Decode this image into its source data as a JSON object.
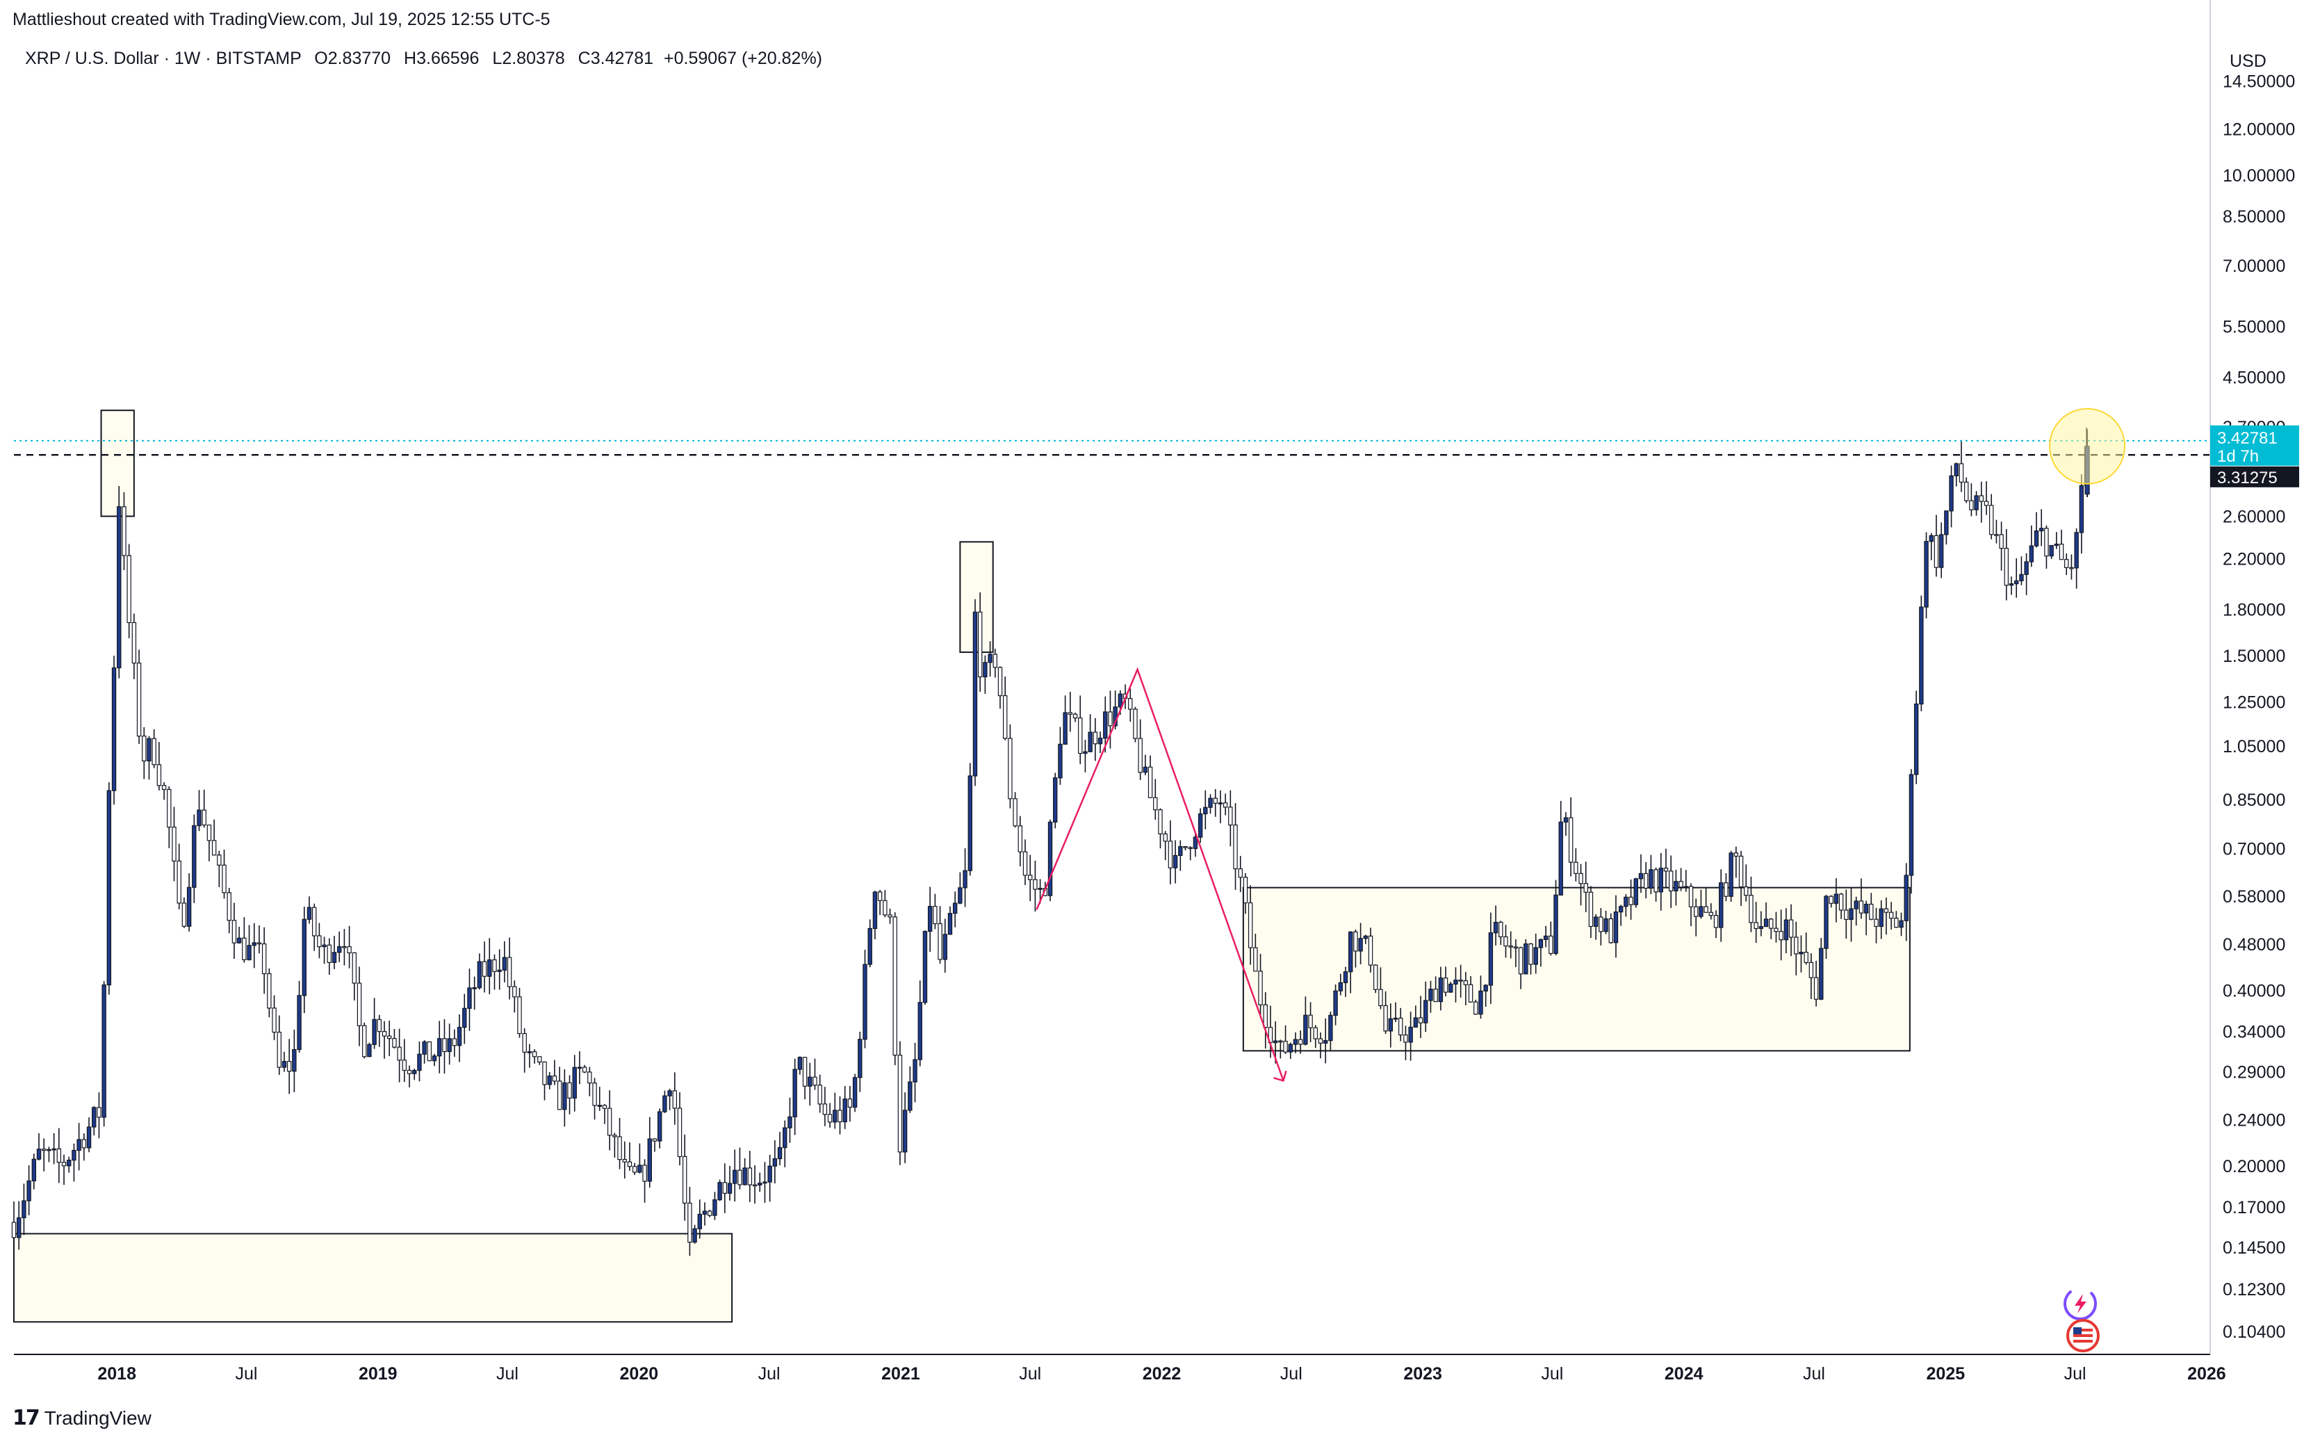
{
  "header": {
    "attribution": "Mattlieshout created with TradingView.com, Jul 19, 2025 12:55 UTC-5",
    "symbol": "XRP / U.S. Dollar · 1W · BITSTAMP",
    "open_label": "O",
    "open": "2.83770",
    "high_label": "H",
    "high": "3.66596",
    "low_label": "L",
    "low": "2.80378",
    "close_label": "C",
    "close": "3.42781",
    "change": "+0.59067 (+20.82%)"
  },
  "footer": {
    "brand": "TradingView"
  },
  "colors": {
    "up_candle": "#131722",
    "down_candle": "#ffffff",
    "body_blue": "#1e3a8a",
    "zone_fill": "#fffdf0",
    "zigzag": "#e91e63",
    "last_price_bg": "#00bcd4",
    "ref_price_bg": "#131722",
    "highlight_circle": "#fff59d",
    "dotted_line": "#00bcd4"
  },
  "icons": [
    "lightning-icon",
    "us-flag-icon"
  ],
  "chart_data": {
    "type": "candlestick",
    "scale": "log",
    "currency": "USD",
    "ylim": [
      0.095,
      17.5
    ],
    "y_ticks": [
      "14.50000",
      "12.00000",
      "10.00000",
      "8.50000",
      "7.00000",
      "5.50000",
      "4.50000",
      "3.70000",
      "2.60000",
      "2.20000",
      "1.80000",
      "1.50000",
      "1.25000",
      "1.05000",
      "0.85000",
      "0.70000",
      "0.58000",
      "0.48000",
      "0.40000",
      "0.34000",
      "0.29000",
      "0.24000",
      "0.20000",
      "0.17000",
      "0.14500",
      "0.12300",
      "0.10400"
    ],
    "x_ticks": [
      {
        "label": "2018",
        "date": "2018-01-01",
        "bold": true
      },
      {
        "label": "Jul",
        "date": "2018-07-01"
      },
      {
        "label": "2019",
        "date": "2019-01-01",
        "bold": true
      },
      {
        "label": "Jul",
        "date": "2019-07-01"
      },
      {
        "label": "2020",
        "date": "2020-01-01",
        "bold": true
      },
      {
        "label": "Jul",
        "date": "2020-07-01"
      },
      {
        "label": "2021",
        "date": "2021-01-01",
        "bold": true
      },
      {
        "label": "Jul",
        "date": "2021-07-01"
      },
      {
        "label": "2022",
        "date": "2022-01-01",
        "bold": true
      },
      {
        "label": "Jul",
        "date": "2022-07-01"
      },
      {
        "label": "2023",
        "date": "2023-01-01",
        "bold": true
      },
      {
        "label": "Jul",
        "date": "2023-07-01"
      },
      {
        "label": "2024",
        "date": "2024-01-01",
        "bold": true
      },
      {
        "label": "Jul",
        "date": "2024-07-01"
      },
      {
        "label": "2025",
        "date": "2025-01-01",
        "bold": true
      },
      {
        "label": "Jul",
        "date": "2025-07-01"
      },
      {
        "label": "2026",
        "date": "2026-01-01",
        "bold": true
      }
    ],
    "x_range": [
      "2017-08-10",
      "2026-01-04"
    ],
    "last_price": {
      "value": 3.42781,
      "label": "3.42781",
      "countdown": "1d 7h"
    },
    "ref_price": {
      "value": 3.31275,
      "label": "3.31275"
    },
    "prior_ath_line": 3.31275,
    "price_path": [
      [
        "2017-08-10",
        0.16
      ],
      [
        "2017-09-15",
        0.21
      ],
      [
        "2017-10-15",
        0.2
      ],
      [
        "2017-11-20",
        0.23
      ],
      [
        "2017-12-10",
        0.25
      ],
      [
        "2017-12-20",
        0.85
      ],
      [
        "2017-12-27",
        1.3
      ],
      [
        "2018-01-03",
        2.9
      ],
      [
        "2018-01-10",
        2.2
      ],
      [
        "2018-01-20",
        1.6
      ],
      [
        "2018-02-05",
        1.0
      ],
      [
        "2018-02-20",
        1.05
      ],
      [
        "2018-03-10",
        0.85
      ],
      [
        "2018-04-01",
        0.5
      ],
      [
        "2018-04-25",
        0.85
      ],
      [
        "2018-05-20",
        0.65
      ],
      [
        "2018-06-20",
        0.48
      ],
      [
        "2018-07-25",
        0.45
      ],
      [
        "2018-08-14",
        0.29
      ],
      [
        "2018-09-05",
        0.3
      ],
      [
        "2018-09-21",
        0.55
      ],
      [
        "2018-10-15",
        0.46
      ],
      [
        "2018-11-15",
        0.5
      ],
      [
        "2018-12-10",
        0.32
      ],
      [
        "2018-12-31",
        0.36
      ],
      [
        "2019-02-10",
        0.3
      ],
      [
        "2019-03-15",
        0.31
      ],
      [
        "2019-04-15",
        0.32
      ],
      [
        "2019-05-20",
        0.42
      ],
      [
        "2019-06-25",
        0.46
      ],
      [
        "2019-07-25",
        0.31
      ],
      [
        "2019-09-10",
        0.26
      ],
      [
        "2019-10-15",
        0.29
      ],
      [
        "2019-11-20",
        0.23
      ],
      [
        "2019-12-15",
        0.19
      ],
      [
        "2020-01-05",
        0.19
      ],
      [
        "2020-02-15",
        0.29
      ],
      [
        "2020-03-12",
        0.14
      ],
      [
        "2020-03-25",
        0.16
      ],
      [
        "2020-05-10",
        0.2
      ],
      [
        "2020-06-15",
        0.19
      ],
      [
        "2020-07-15",
        0.2
      ],
      [
        "2020-08-10",
        0.3
      ],
      [
        "2020-09-20",
        0.24
      ],
      [
        "2020-10-25",
        0.25
      ],
      [
        "2020-11-25",
        0.62
      ],
      [
        "2020-12-20",
        0.5
      ],
      [
        "2020-12-28",
        0.21
      ],
      [
        "2021-01-20",
        0.29
      ],
      [
        "2021-02-10",
        0.58
      ],
      [
        "2021-02-25",
        0.45
      ],
      [
        "2021-04-05",
        0.65
      ],
      [
        "2021-04-14",
        1.8
      ],
      [
        "2021-04-25",
        1.35
      ],
      [
        "2021-05-15",
        1.5
      ],
      [
        "2021-06-01",
        0.9
      ],
      [
        "2021-06-25",
        0.62
      ],
      [
        "2021-07-20",
        0.58
      ],
      [
        "2021-08-15",
        1.2
      ],
      [
        "2021-09-15",
        1.05
      ],
      [
        "2021-10-10",
        1.15
      ],
      [
        "2021-11-10",
        1.25
      ],
      [
        "2021-12-10",
        0.9
      ],
      [
        "2022-01-20",
        0.65
      ],
      [
        "2022-02-20",
        0.78
      ],
      [
        "2022-03-25",
        0.85
      ],
      [
        "2022-04-20",
        0.62
      ],
      [
        "2022-05-15",
        0.4
      ],
      [
        "2022-06-15",
        0.31
      ],
      [
        "2022-07-20",
        0.35
      ],
      [
        "2022-08-20",
        0.34
      ],
      [
        "2022-09-23",
        0.5
      ],
      [
        "2022-10-20",
        0.46
      ],
      [
        "2022-11-10",
        0.34
      ],
      [
        "2022-12-20",
        0.34
      ],
      [
        "2023-01-25",
        0.42
      ],
      [
        "2023-03-20",
        0.38
      ],
      [
        "2023-04-10",
        0.5
      ],
      [
        "2023-05-20",
        0.45
      ],
      [
        "2023-06-30",
        0.48
      ],
      [
        "2023-07-14",
        0.8
      ],
      [
        "2023-08-20",
        0.55
      ],
      [
        "2023-09-20",
        0.5
      ],
      [
        "2023-11-10",
        0.63
      ],
      [
        "2023-12-20",
        0.6
      ],
      [
        "2024-02-10",
        0.52
      ],
      [
        "2024-03-12",
        0.68
      ],
      [
        "2024-04-15",
        0.5
      ],
      [
        "2024-05-20",
        0.52
      ],
      [
        "2024-07-05",
        0.4
      ],
      [
        "2024-07-20",
        0.6
      ],
      [
        "2024-08-20",
        0.55
      ],
      [
        "2024-10-20",
        0.52
      ],
      [
        "2024-11-05",
        0.53
      ],
      [
        "2024-11-15",
        1.05
      ],
      [
        "2024-11-25",
        1.45
      ],
      [
        "2024-12-03",
        2.5
      ],
      [
        "2024-12-20",
        2.2
      ],
      [
        "2025-01-16",
        3.2
      ],
      [
        "2025-02-03",
        2.7
      ],
      [
        "2025-03-01",
        2.6
      ],
      [
        "2025-04-07",
        1.9
      ],
      [
        "2025-05-12",
        2.45
      ],
      [
        "2025-06-20",
        2.1
      ],
      [
        "2025-07-01",
        2.2
      ],
      [
        "2025-07-10",
        2.95
      ],
      [
        "2025-07-18",
        3.42781
      ]
    ],
    "zones": [
      {
        "from": "2017-12-10",
        "to": "2018-01-25",
        "low": 2.6,
        "high": 3.95
      },
      {
        "from": "2021-03-25",
        "to": "2021-05-10",
        "low": 1.52,
        "high": 2.35
      },
      {
        "from": "2017-08-10",
        "to": "2020-05-10",
        "low": 0.108,
        "high": 0.153
      },
      {
        "from": "2022-04-25",
        "to": "2024-11-12",
        "low": 0.315,
        "high": 0.6
      }
    ],
    "zigzag": [
      [
        "2021-07-10",
        0.55
      ],
      [
        "2021-11-28",
        1.42
      ],
      [
        "2022-06-20",
        0.28
      ]
    ]
  }
}
